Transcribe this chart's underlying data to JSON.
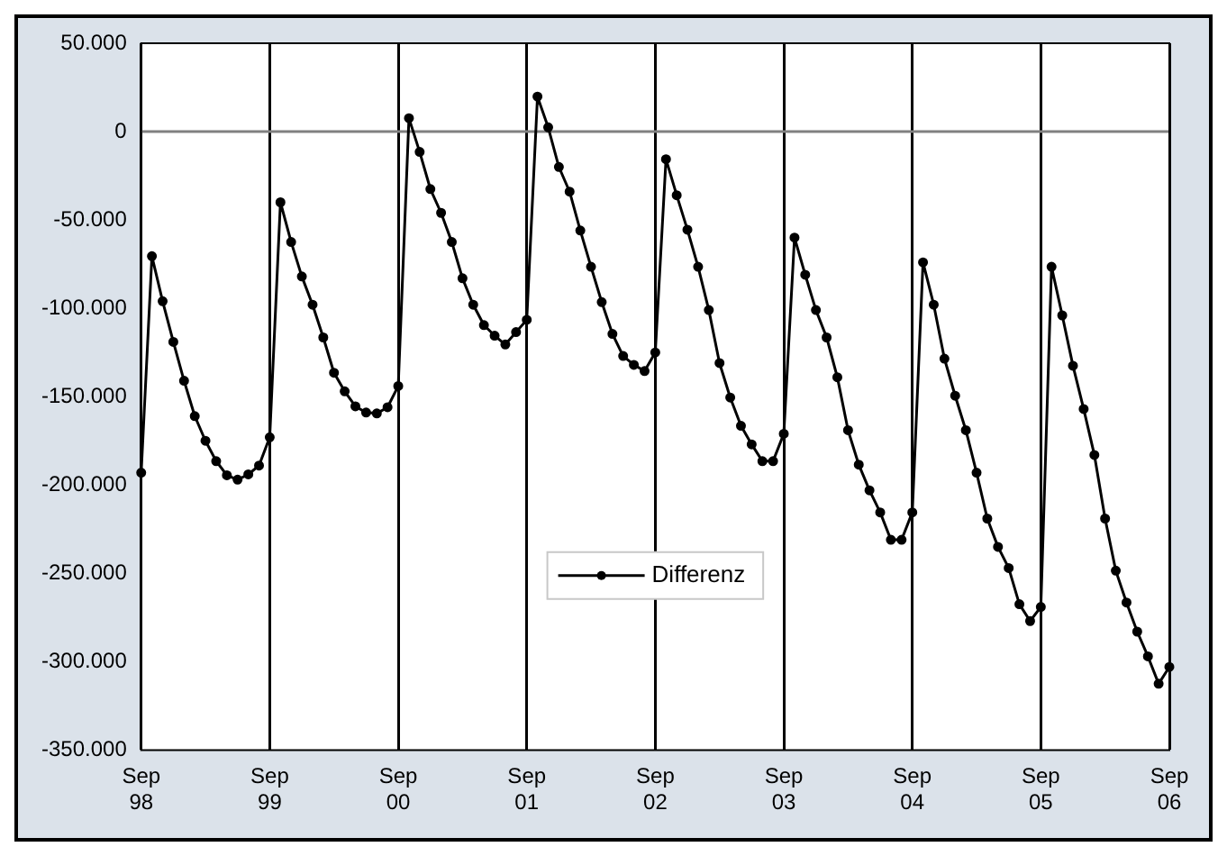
{
  "chart_data": {
    "type": "line",
    "categories": [
      "Sep 98",
      null,
      null,
      null,
      null,
      null,
      null,
      null,
      null,
      null,
      null,
      null,
      "Sep 99",
      null,
      null,
      null,
      null,
      null,
      null,
      null,
      null,
      null,
      null,
      null,
      "Sep 00",
      null,
      null,
      null,
      null,
      null,
      null,
      null,
      null,
      null,
      null,
      null,
      "Sep 01",
      null,
      null,
      null,
      null,
      null,
      null,
      null,
      null,
      null,
      null,
      null,
      "Sep 02",
      null,
      null,
      null,
      null,
      null,
      null,
      null,
      null,
      null,
      null,
      null,
      "Sep 03",
      null,
      null,
      null,
      null,
      null,
      null,
      null,
      null,
      null,
      null,
      null,
      "Sep 04",
      null,
      null,
      null,
      null,
      null,
      null,
      null,
      null,
      null,
      null,
      null,
      "Sep 05",
      null,
      null,
      null,
      null,
      null,
      null,
      null,
      null,
      null,
      null,
      null,
      "Sep 06"
    ],
    "series": [
      {
        "name": "Differenz",
        "color": "#000000",
        "values": [
          -193000,
          -70500,
          -96000,
          -119000,
          -141000,
          -161000,
          -175000,
          -186500,
          -194500,
          -197000,
          -194000,
          -189000,
          -173000,
          -40000,
          -62500,
          -82000,
          -98000,
          -116500,
          -136500,
          -147000,
          -155500,
          -159000,
          -159500,
          -156000,
          -144000,
          7600,
          -11500,
          -32500,
          -46000,
          -62500,
          -83000,
          -98000,
          -109500,
          -115500,
          -120500,
          -113500,
          -106500,
          19800,
          2400,
          -20000,
          -34000,
          -56000,
          -76500,
          -96500,
          -114500,
          -127000,
          -132000,
          -135500,
          -125000,
          -15600,
          -36000,
          -55500,
          -76500,
          -101000,
          -131000,
          -150500,
          -166500,
          -177000,
          -186500,
          -186500,
          -171000,
          -60000,
          -81000,
          -101000,
          -116500,
          -139000,
          -169000,
          -188500,
          -203000,
          -215500,
          -231000,
          -231000,
          -215500,
          -74000,
          -98000,
          -128500,
          -149500,
          -169000,
          -193000,
          -219000,
          -235000,
          -247000,
          -267500,
          -277000,
          -269000,
          -76500,
          -104000,
          -132500,
          -157000,
          -183000,
          -219000,
          -248500,
          -266500,
          -283000,
          -297000,
          -312500,
          -303000
        ]
      }
    ],
    "ylim": [
      -350000,
      50000
    ],
    "yticks": [
      {
        "value": 50000,
        "label": "50.000"
      },
      0,
      {
        "value": -50000,
        "label": "-50.000"
      },
      {
        "value": -100000,
        "label": "-100.000"
      },
      {
        "value": -150000,
        "label": "-150.000"
      },
      {
        "value": -200000,
        "label": "-200.000"
      },
      {
        "value": -250000,
        "label": "-250.000"
      },
      {
        "value": -300000,
        "label": "-300.000"
      },
      {
        "value": -350000,
        "label": "-350.000"
      }
    ],
    "grid": "x",
    "ref_lines": [
      {
        "axis": "y",
        "value": 0,
        "color": "#808080"
      }
    ],
    "legend": "bottom",
    "marker": "circle",
    "line_style": "solid"
  }
}
